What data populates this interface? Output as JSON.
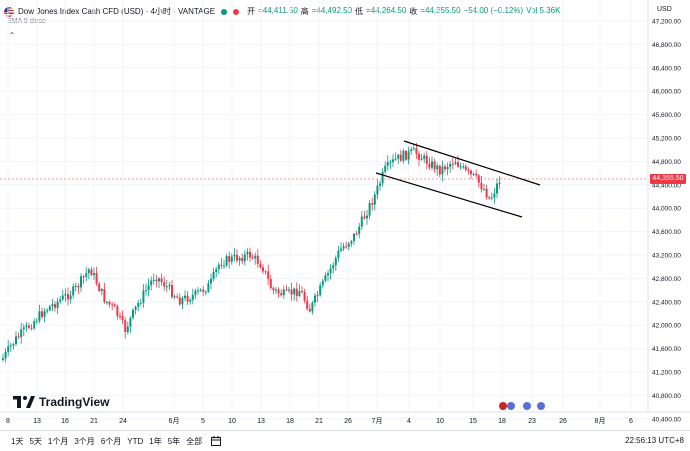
{
  "header": {
    "title": "Dow Jones Index Cash CFD (USD) · 4小时 · VANTAGE",
    "open_label": "开",
    "open_value": "=44,411.50",
    "high_label": "高",
    "high_value": "=44,492.50",
    "low_label": "低",
    "low_value": "=44,264.50",
    "close_label": "收",
    "close_value": "=44,355.50",
    "change": "−54.00 (−0.12%)",
    "volume": "Vol 5.36K",
    "ema_label": "EMA 9 close",
    "currency": "USD"
  },
  "price_axis": {
    "labels": [
      "47,200.00",
      "46,800.00",
      "46,400.00",
      "46,000.00",
      "45,600.00",
      "45,200.00",
      "44,800.00",
      "44,400.00",
      "44,000.00",
      "43,600.00",
      "43,200.00",
      "42,800.00",
      "42,400.00",
      "42,000.00",
      "41,600.00",
      "41,200.00",
      "40,800.00",
      "40,400.00"
    ],
    "current_price": "44,355.50"
  },
  "time_axis": {
    "labels": [
      "8",
      "13",
      "16",
      "21",
      "24",
      "6月",
      "5",
      "10",
      "13",
      "18",
      "21",
      "26",
      "7月",
      "4",
      "10",
      "15",
      "18",
      "23",
      "26",
      "8月",
      "6"
    ]
  },
  "watermark": {
    "brand": "TradingView"
  },
  "bottom_bar": {
    "ranges": [
      "1天",
      "5天",
      "1个月",
      "3个月",
      "6个月",
      "YTD",
      "1年",
      "5年",
      "全部"
    ],
    "time": "22:56:13 UTC+8"
  },
  "colors": {
    "up": "#089981",
    "down": "#f23645",
    "channel": "#000000"
  }
}
